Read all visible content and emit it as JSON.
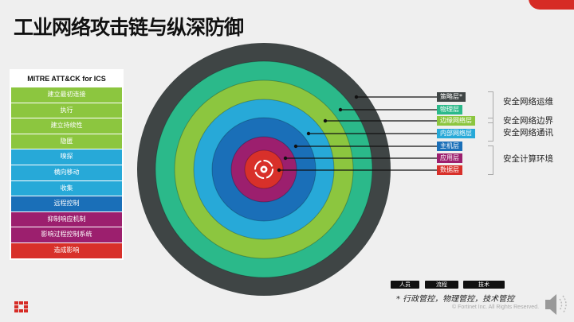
{
  "title": "工业网络攻击链与纵深防御",
  "mitre": {
    "header": "MITRE ATT&CK for ICS",
    "rows": [
      {
        "label": "建立最初连接",
        "color": "#8cc63f"
      },
      {
        "label": "执行",
        "color": "#8cc63f"
      },
      {
        "label": "建立持续性",
        "color": "#8cc63f"
      },
      {
        "label": "隐匿",
        "color": "#8cc63f"
      },
      {
        "label": "嗅探",
        "color": "#27a9d8"
      },
      {
        "label": "横向移动",
        "color": "#27a9d8"
      },
      {
        "label": "收集",
        "color": "#27a9d8"
      },
      {
        "label": "远程控制",
        "color": "#1a6fb8"
      },
      {
        "label": "抑制响应机制",
        "color": "#9c1f6e"
      },
      {
        "label": "影响过程控制系统",
        "color": "#9c1f6e"
      },
      {
        "label": "造成影响",
        "color": "#d8302a"
      }
    ]
  },
  "layers": [
    {
      "label": "策略层*",
      "color": "#3f4545"
    },
    {
      "label": "物理层",
      "color": "#2bb98a"
    },
    {
      "label": "边缘网络层",
      "color": "#8cc63f"
    },
    {
      "label": "内部网络层",
      "color": "#27a9d8"
    },
    {
      "label": "主机层",
      "color": "#1a6fb8"
    },
    {
      "label": "应用层",
      "color": "#9c1f6e"
    },
    {
      "label": "数据层",
      "color": "#d8302a"
    }
  ],
  "groups": {
    "ops": "安全网络运维",
    "border": "安全网络边界",
    "comm": "安全网络通讯",
    "compute": "安全计算环境"
  },
  "tags": [
    "人员",
    "流程",
    "技术"
  ],
  "note": "* 行政管控，物理管控，技术管控",
  "copyright": "© Fortinet Inc. All Rights Reserved.",
  "icons": [
    "fortinet-logo",
    "speaker-icon",
    "gear-cycle-icon"
  ]
}
